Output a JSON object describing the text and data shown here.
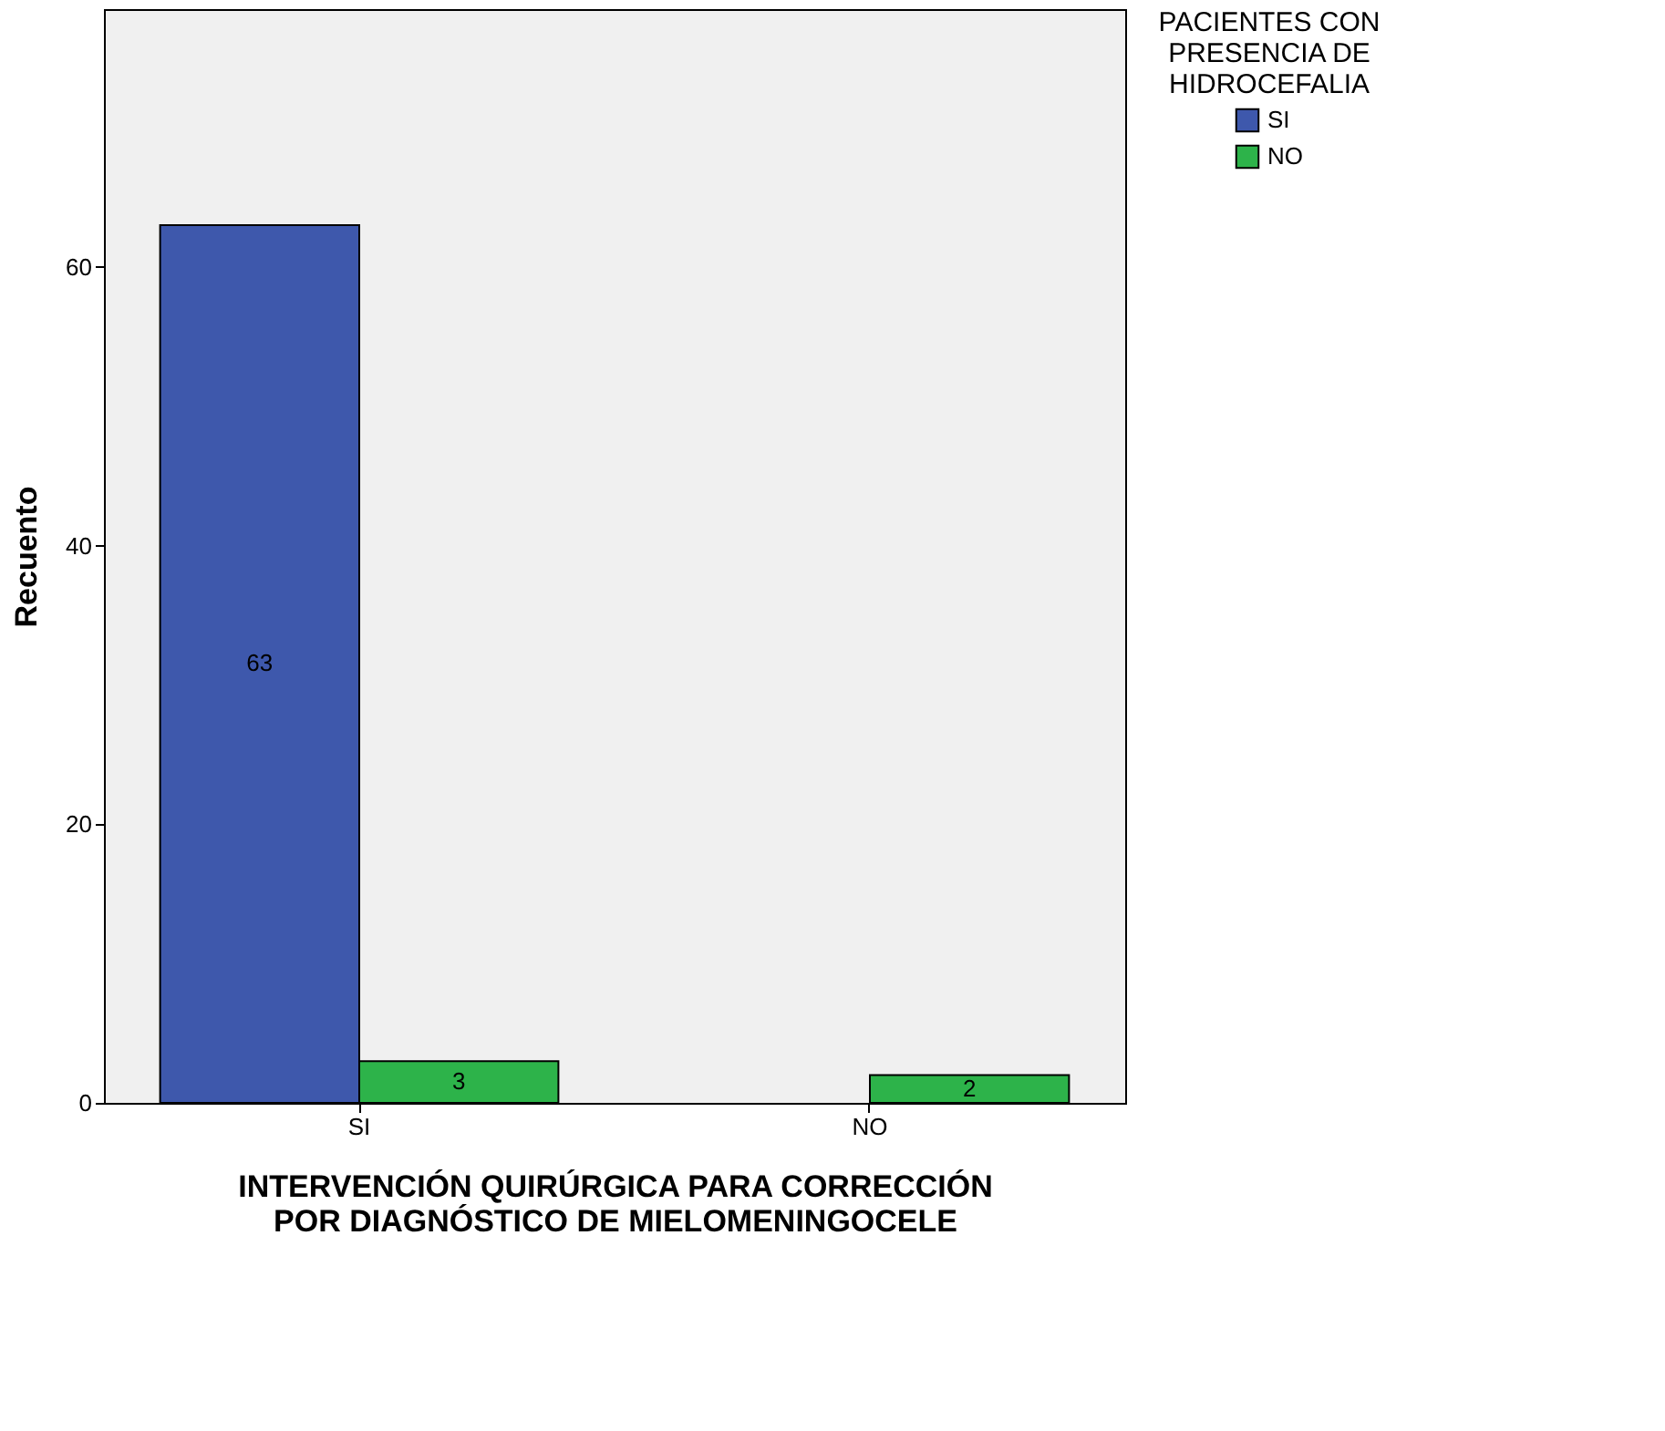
{
  "chart_data": {
    "type": "bar",
    "xlabel": "INTERVENCIÓN QUIRÚRGICA PARA CORRECCIÓN POR DIAGNÓSTICO DE MIELOMENINGOCELE",
    "ylabel": "Recuento",
    "legend_title": "PACIENTES CON PRESENCIA DE HIDROCEFALIA",
    "categories": [
      "SI",
      "NO"
    ],
    "series": [
      {
        "name": "SI",
        "color": "#3e58ac",
        "values": [
          63,
          null
        ]
      },
      {
        "name": "NO",
        "color": "#2db34a",
        "values": [
          3,
          2
        ]
      }
    ],
    "ylim": [
      0,
      78.5
    ],
    "yticks": [
      0,
      20,
      40,
      60
    ],
    "grid": false,
    "legend": "top right",
    "data_labels": true
  }
}
